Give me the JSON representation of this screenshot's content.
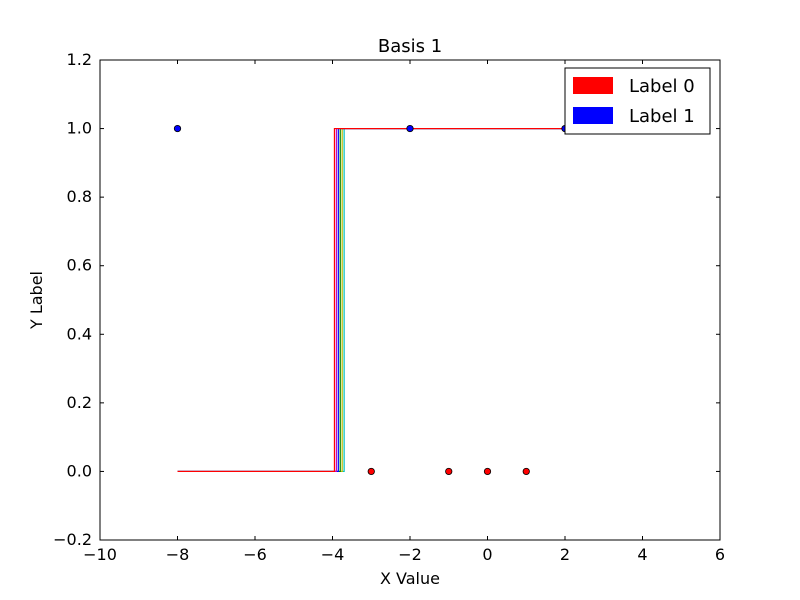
{
  "chart_data": {
    "type": "scatter",
    "title": "Basis 1",
    "xlabel": "X Value",
    "ylabel": "Y Label",
    "xlim": [
      -10,
      6
    ],
    "ylim": [
      -0.2,
      1.2
    ],
    "xticks": [
      -10,
      -8,
      -6,
      -4,
      -2,
      0,
      2,
      4,
      6
    ],
    "yticks": [
      -0.2,
      0.0,
      0.2,
      0.4,
      0.6,
      0.8,
      1.0,
      1.2
    ],
    "xtick_labels": [
      "−10",
      "−8",
      "−6",
      "−4",
      "−2",
      "0",
      "2",
      "4",
      "6"
    ],
    "ytick_labels": [
      "−0.2",
      "0.0",
      "0.2",
      "0.4",
      "0.6",
      "0.8",
      "1.0",
      "1.2"
    ],
    "grid": false,
    "legend": {
      "placement": "top-right",
      "entries": [
        {
          "label": "Label 0",
          "color": "#ff0000"
        },
        {
          "label": "Label 1",
          "color": "#0000ff"
        }
      ]
    },
    "points": [
      {
        "x": -8,
        "y": 1,
        "label": 1
      },
      {
        "x": -2,
        "y": 1,
        "label": 1
      },
      {
        "x": 2,
        "y": 1,
        "label": 1
      },
      {
        "x": -3,
        "y": 0,
        "label": 0
      },
      {
        "x": -1,
        "y": 0,
        "label": 0
      },
      {
        "x": 0,
        "y": 0,
        "label": 0
      },
      {
        "x": 1,
        "y": 0,
        "label": 0
      }
    ],
    "step_curves": [
      {
        "color": "#00bfbf",
        "x_start": -8,
        "x_end": 2,
        "threshold": -3.7
      },
      {
        "color": "#bfbf00",
        "x_start": -8,
        "x_end": 2,
        "threshold": -3.75
      },
      {
        "color": "#008000",
        "x_start": -8,
        "x_end": 2,
        "threshold": -3.8
      },
      {
        "color": "#0000ff",
        "x_start": -8,
        "x_end": 2,
        "threshold": -3.85
      },
      {
        "color": "#bf00bf",
        "x_start": -8,
        "x_end": 2,
        "threshold": -3.9
      },
      {
        "color": "#ff0000",
        "x_start": -8,
        "x_end": 2,
        "threshold": -3.95
      }
    ]
  },
  "colors": {
    "label0": "#ff0000",
    "label1": "#0000ff"
  }
}
